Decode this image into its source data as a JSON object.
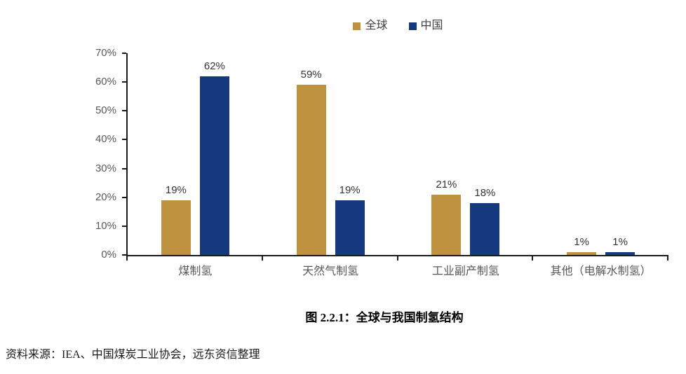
{
  "chart_data": {
    "type": "bar",
    "title": "图 2.2.1：全球与我国制氢结构",
    "categories": [
      "煤制氢",
      "天然气制氢",
      "工业副产制氢",
      "其他（电解水制氢）"
    ],
    "series": [
      {
        "name": "全球",
        "color": "#BF9240",
        "values": [
          19,
          59,
          21,
          1
        ]
      },
      {
        "name": "中国",
        "color": "#15397F",
        "values": [
          62,
          19,
          18,
          1
        ]
      }
    ],
    "data_labels": [
      "19%",
      "59%",
      "21%",
      "1%",
      "62%",
      "19%",
      "18%",
      "1%"
    ],
    "y_axis": {
      "min": 0,
      "max": 70,
      "step": 10,
      "tick_suffix": "%",
      "tick_labels": [
        "0%",
        "10%",
        "20%",
        "30%",
        "40%",
        "50%",
        "60%",
        "70%"
      ]
    },
    "legend_position": "top",
    "grid": false,
    "axis_color": "#1a1a1a",
    "label_color": "#595959",
    "value_label_color": "#333333"
  },
  "caption": {
    "text": "图 2.2.1：全球与我国制氢结构"
  },
  "footer": {
    "source": "资料来源：IEA、中国煤炭工业协会，远东资信整理"
  }
}
